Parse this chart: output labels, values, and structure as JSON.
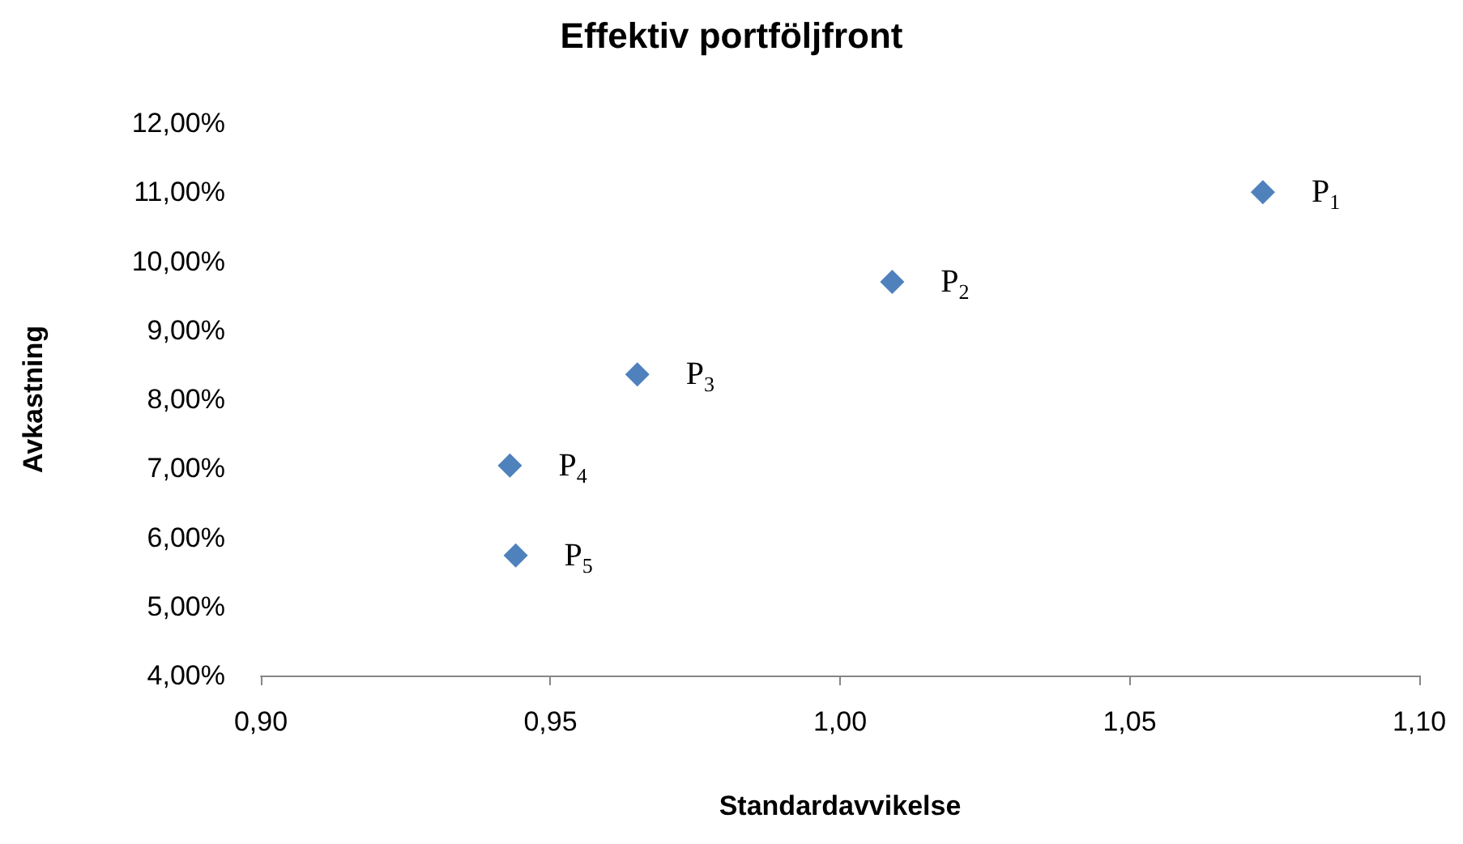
{
  "chart_data": {
    "type": "scatter",
    "title": "Effektiv portföljfront",
    "xlabel": "Standardavvikelse",
    "ylabel": "Avkastning",
    "x": [
      1.073,
      1.009,
      0.965,
      0.943,
      0.944
    ],
    "series": [
      {
        "color": "#4f81bd",
        "values": [
          11.0,
          9.7,
          8.36,
          7.04,
          5.74
        ]
      }
    ],
    "annotations": [
      {
        "text": "P$_{1}$",
        "x": 1.073,
        "y": 11.0
      },
      {
        "text": "P$_{2}$",
        "x": 1.009,
        "y": 9.7
      },
      {
        "text": "P$_{3}$",
        "x": 0.965,
        "y": 8.36
      },
      {
        "text": "P$_{4}$",
        "x": 0.943,
        "y": 7.04
      },
      {
        "text": "P$_{5}$",
        "x": 0.944,
        "y": 5.74
      }
    ],
    "xlim": [
      0.9,
      1.1
    ],
    "xticks": [
      {
        "value": 0.9,
        "label": "0,90"
      },
      {
        "value": 0.95,
        "label": "0,95"
      },
      {
        "value": 1.0,
        "label": "1,00"
      },
      {
        "value": 1.05,
        "label": "1,05"
      },
      {
        "value": 1.1,
        "label": "1,10"
      }
    ],
    "ylim": [
      4,
      12
    ],
    "yticks": [
      {
        "value": 4,
        "label": "4,00%"
      },
      {
        "value": 5,
        "label": "5,00%"
      },
      {
        "value": 6,
        "label": "6,00%"
      },
      {
        "value": 7,
        "label": "7,00%"
      },
      {
        "value": 8,
        "label": "8,00%"
      },
      {
        "value": 9,
        "label": "9,00%"
      },
      {
        "value": 10,
        "label": "10,00%"
      },
      {
        "value": 11,
        "label": "11,00%"
      },
      {
        "value": 12,
        "label": "12,00%"
      }
    ],
    "grid": false,
    "marker": "diamond"
  }
}
